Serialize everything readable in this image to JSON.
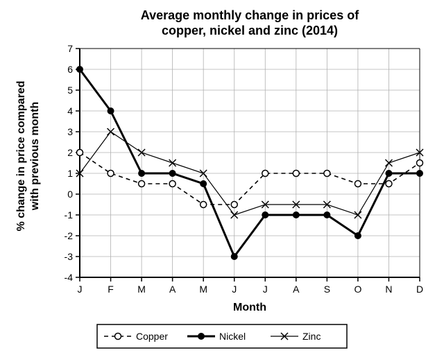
{
  "chart": {
    "type": "line",
    "title_line1": "Average monthly change in prices of",
    "title_line2": "copper, nickel and zinc (2014)",
    "title_fontsize": 18,
    "title_weight": "bold",
    "xlabel": "Month",
    "ylabel_line1": "% change in price compared",
    "ylabel_line2": "with previous month",
    "label_fontsize": 16,
    "label_weight": "bold",
    "categories": [
      "J",
      "F",
      "M",
      "A",
      "M",
      "J",
      "J",
      "A",
      "S",
      "O",
      "N",
      "D"
    ],
    "ylim": [
      -4,
      7
    ],
    "ytick_step": 1,
    "background_color": "#ffffff",
    "grid_color": "#b0b0b0",
    "axis_color": "#000000",
    "tick_fontsize": 14,
    "series": {
      "copper": {
        "name": "Copper",
        "color": "#000000",
        "line_width": 1.6,
        "dash": "6,5",
        "marker": "circle-open",
        "marker_size": 4.5,
        "values": [
          2,
          1,
          0.5,
          0.5,
          -0.5,
          -0.5,
          1,
          1,
          1,
          0.5,
          0.5,
          1.5
        ]
      },
      "nickel": {
        "name": "Nickel",
        "color": "#000000",
        "line_width": 3,
        "dash": "none",
        "marker": "circle-filled",
        "marker_size": 4.5,
        "values": [
          6,
          4,
          1,
          1,
          0.5,
          -3,
          -1,
          -1,
          -1,
          -2,
          1,
          1
        ]
      },
      "zinc": {
        "name": "Zinc",
        "color": "#000000",
        "line_width": 1.2,
        "dash": "none",
        "marker": "cross",
        "marker_size": 5,
        "values": [
          1,
          3,
          2,
          1.5,
          1,
          -1,
          -0.5,
          -0.5,
          -0.5,
          -1,
          1.5,
          2
        ]
      }
    },
    "legend": {
      "border_color": "#000000",
      "background": "#ffffff",
      "fontsize": 14,
      "copper_label": "Copper",
      "nickel_label": "Nickel",
      "zinc_label": "Zinc"
    }
  }
}
